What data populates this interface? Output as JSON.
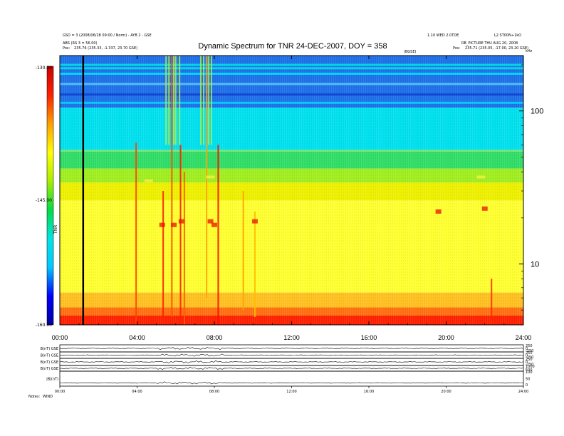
{
  "header": {
    "left_line1": "GSD = 3 (2008/06/28 09:00 / Norm) - AYB 2 - GSE",
    "left_line2": "ABS (RS 3 = 56.00)",
    "left_pos_label": "Pos:",
    "left_pos_value": "235.76 (235.33, -1.337, 23.70 GSE)",
    "right_line1": "1.10 WED 2.0TDE",
    "right_line1b": "L2 ST00N+1kO",
    "right_line2": "RB_PICTURE THU AUG 20, 2008",
    "right_pos_label": "Pos:",
    "right_pos_value": "235.71 (235.05, -17.00, 23.20 GSE)",
    "small_mid": "(BGSE)",
    "unit_right": "kHz"
  },
  "chart_data": {
    "type": "heatmap",
    "title": "Dynamic Spectrum for TNR 24-DEC-2007, DOY = 358",
    "x": {
      "ticks": [
        "00:00",
        "04:00",
        "08:00",
        "12:00",
        "16:00",
        "20:00",
        "24:00"
      ],
      "range_hours": [
        0,
        24
      ]
    },
    "y": {
      "scale": "log",
      "ticks": [
        "100",
        "10"
      ],
      "tick_values": [
        100,
        10
      ],
      "range_khz": [
        4,
        230
      ]
    },
    "colorbar": {
      "ticks": [
        "-130.00",
        "-145.00",
        "-160.00"
      ],
      "label": "TNR",
      "range": [
        -160,
        -130
      ],
      "colors": [
        "#0000a0",
        "#0000ff",
        "#00c8ff",
        "#00e5e5",
        "#00dd44",
        "#aaee00",
        "#ffff00",
        "#ffa000",
        "#ff2000",
        "#cc0000"
      ]
    },
    "bands": [
      {
        "from": 230,
        "to": 105,
        "color": "#1e70e8"
      },
      {
        "from": 105,
        "to": 55,
        "color": "#00e0ee"
      },
      {
        "from": 55,
        "to": 42,
        "color": "#30dd66"
      },
      {
        "from": 42,
        "to": 34,
        "color": "#a0ee20"
      },
      {
        "from": 34,
        "to": 26,
        "color": "#eef000"
      },
      {
        "from": 26,
        "to": 6.5,
        "color": "#ffff30"
      },
      {
        "from": 6.5,
        "to": 5.2,
        "color": "#ffc020"
      },
      {
        "from": 5.2,
        "to": 4.6,
        "color": "#ff7010"
      },
      {
        "from": 4.6,
        "to": 4,
        "color": "#ff2000"
      }
    ],
    "horizontal_lines": [
      {
        "freq": 200,
        "color": "#00e5e5"
      },
      {
        "freq": 190,
        "color": "#00e5e5"
      },
      {
        "freq": 175,
        "color": "#00e5ff"
      },
      {
        "freq": 150,
        "color": "#5cc8ff"
      },
      {
        "freq": 128,
        "color": "#1040d0"
      },
      {
        "freq": 113,
        "color": "#00d8ff"
      },
      {
        "freq": 55,
        "color": "#80e880"
      }
    ],
    "marker_hour": 1.2,
    "bursts": [
      {
        "t": 3.95,
        "f_top": 62,
        "f_bot": 4,
        "color": "#ff4000"
      },
      {
        "t": 5.35,
        "f_top": 30,
        "f_bot": 4.5,
        "color": "#ff2000"
      },
      {
        "t": 5.8,
        "f_top": 230,
        "f_bot": 4.5,
        "color": "#ff5000"
      },
      {
        "t": 6.25,
        "f_top": 60,
        "f_bot": 4,
        "color": "#ff2000"
      },
      {
        "t": 6.45,
        "f_top": 40,
        "f_bot": 4,
        "color": "#ff6000"
      },
      {
        "t": 7.6,
        "f_top": 230,
        "f_bot": 6,
        "color": "#ffa000"
      },
      {
        "t": 8.2,
        "f_top": 60,
        "f_bot": 4,
        "color": "#ff1000"
      },
      {
        "t": 9.5,
        "f_top": 30,
        "f_bot": 5,
        "color": "#ffa000"
      },
      {
        "t": 10.1,
        "f_top": 22,
        "f_bot": 4.5,
        "color": "#ffc000"
      },
      {
        "t": 22.35,
        "f_top": 8,
        "f_bot": 4,
        "color": "#ff3000"
      }
    ],
    "upper_streaks": [
      5.5,
      5.65,
      5.9,
      6.0,
      6.2,
      7.3,
      7.45,
      7.7,
      7.85
    ],
    "red_patches": [
      {
        "t": 5.3,
        "f": 18
      },
      {
        "t": 5.9,
        "f": 18
      },
      {
        "t": 6.3,
        "f": 19
      },
      {
        "t": 7.8,
        "f": 19
      },
      {
        "t": 8.0,
        "f": 18
      },
      {
        "t": 10.1,
        "f": 19
      },
      {
        "t": 19.6,
        "f": 22
      },
      {
        "t": 22.0,
        "f": 23
      }
    ],
    "green_blobs": [
      {
        "t": 4.6,
        "f": 35
      },
      {
        "t": 7.8,
        "f": 37
      },
      {
        "t": 21.8,
        "f": 37
      }
    ]
  },
  "lower_panels": {
    "left_labels": [
      "B(nT) GSE",
      "B(nT) GSE",
      "B(nT) GSE",
      "B(nT) GSE",
      "|B|(nT)"
    ],
    "right_ticks": [
      [
        "250",
        "0",
        "-250"
      ],
      [
        "250",
        "0",
        "-250"
      ],
      [
        "250",
        "0",
        "-250"
      ],
      [
        "1000",
        "500"
      ],
      [
        "100",
        "50",
        "0"
      ]
    ],
    "x_ticks": [
      "00:00",
      "04:00",
      "08:00",
      "12:00",
      "16:00",
      "20:00",
      "24:00"
    ],
    "footer_label": "Notes:",
    "footer_value": "WIND"
  }
}
